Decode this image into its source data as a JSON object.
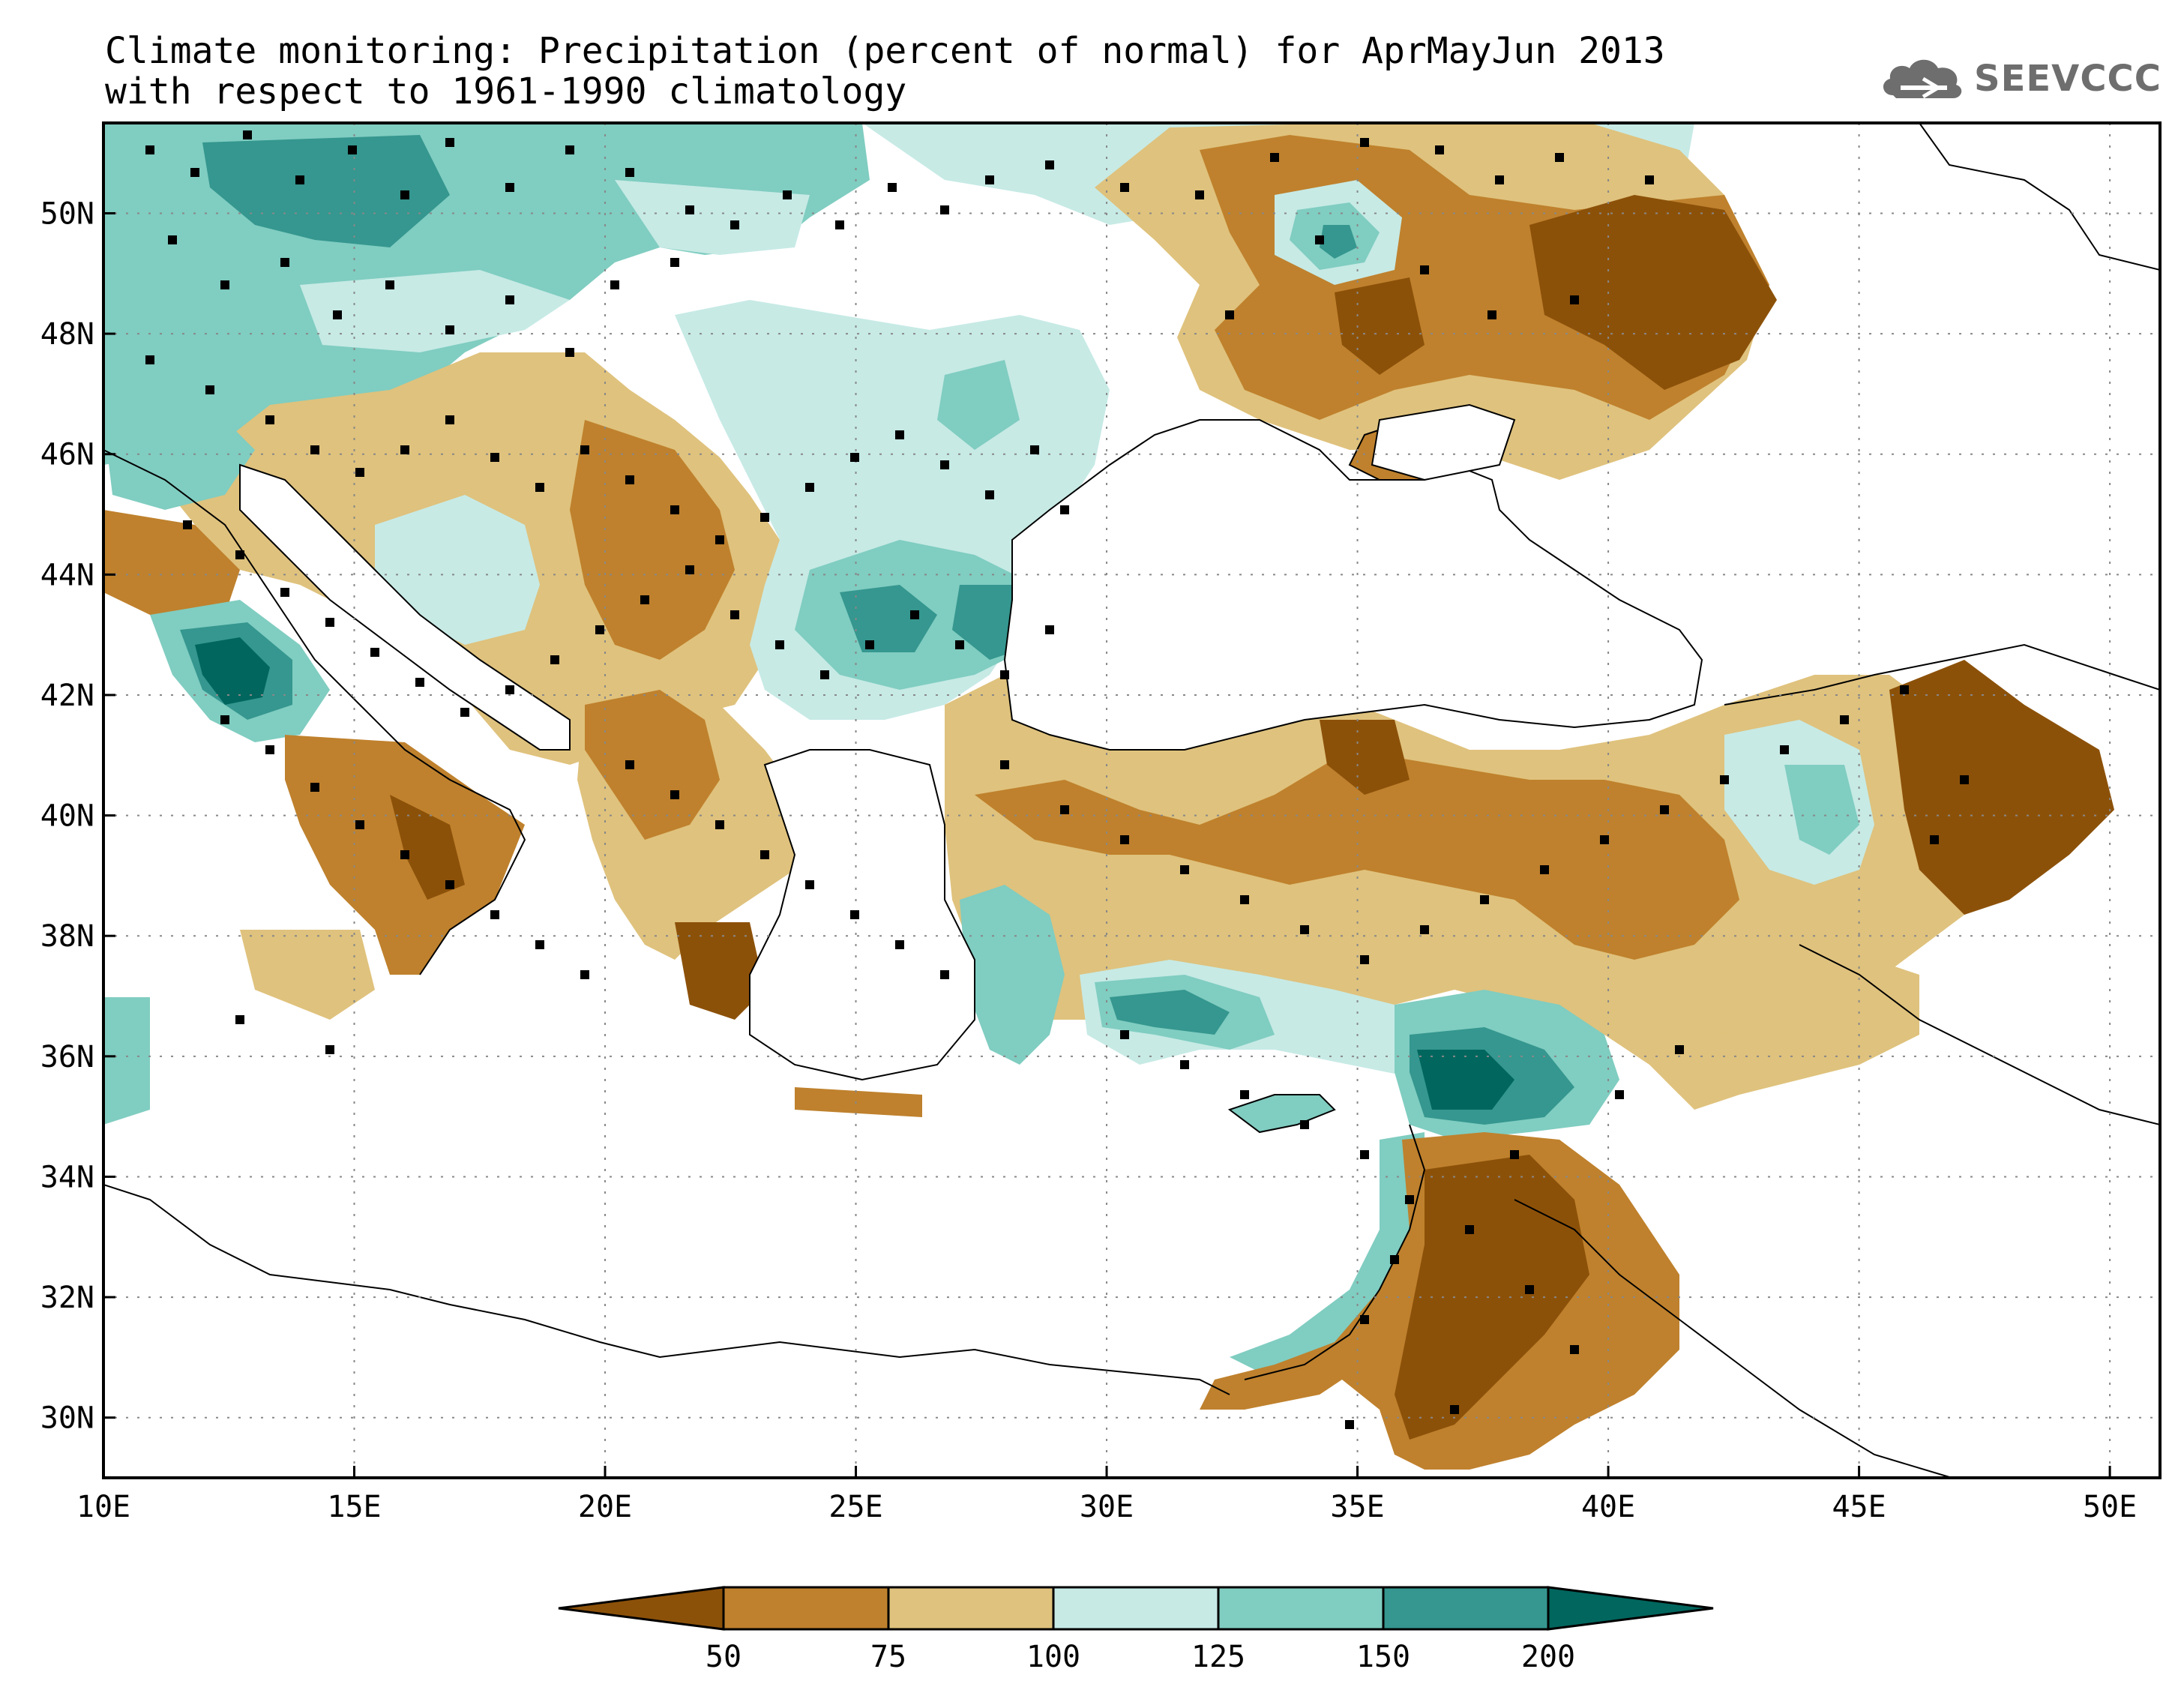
{
  "title": {
    "line1": "Climate monitoring: Precipitation (percent of normal) for AprMayJun 2013",
    "line2": "with respect to 1961-1990 climatology"
  },
  "logo": {
    "text": "SEEVCCC",
    "icon": "cloud-icon"
  },
  "map": {
    "lon_range": [
      10,
      51
    ],
    "lat_range": [
      29,
      51.5
    ],
    "lon_ticks": [
      "10E",
      "15E",
      "20E",
      "25E",
      "30E",
      "35E",
      "40E",
      "45E",
      "50E"
    ],
    "lat_ticks": [
      "30N",
      "32N",
      "34N",
      "36N",
      "38N",
      "40N",
      "42N",
      "44N",
      "46N",
      "48N",
      "50N"
    ],
    "grid": "dotted"
  },
  "legend": {
    "labels": [
      "50",
      "75",
      "100",
      "125",
      "150",
      "200"
    ],
    "colors": [
      "#8c5109",
      "#bf812d",
      "#dfc27d",
      "#c7eae5",
      "#80cdc1",
      "#35978f",
      "#01665e"
    ]
  }
}
